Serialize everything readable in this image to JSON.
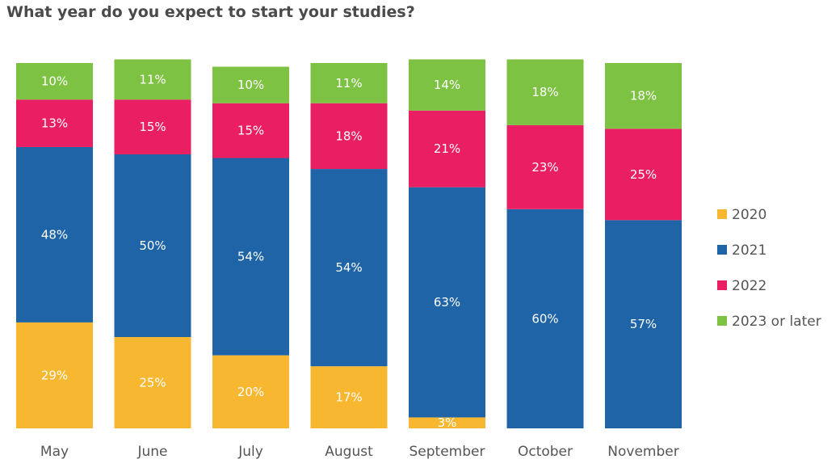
{
  "chart_data": {
    "type": "bar",
    "stacked": true,
    "normalized": true,
    "title": "What year do you expect to start your studies?",
    "xlabel": "",
    "ylabel": "",
    "ylim": [
      0,
      100
    ],
    "categories": [
      "May",
      "June",
      "July",
      "August",
      "September",
      "October",
      "November"
    ],
    "series": [
      {
        "name": "2020",
        "color": "#f7b731",
        "values": [
          29,
          25,
          20,
          17,
          3,
          0,
          0
        ],
        "labels": [
          "29%",
          "25%",
          "20%",
          "17%",
          "3%",
          "",
          ""
        ]
      },
      {
        "name": "2021",
        "color": "#1e64a6",
        "values": [
          48,
          50,
          54,
          54,
          63,
          60,
          57
        ],
        "labels": [
          "48%",
          "50%",
          "54%",
          "54%",
          "63%",
          "60%",
          "57%"
        ]
      },
      {
        "name": "2022",
        "color": "#e91e63",
        "values": [
          13,
          15,
          15,
          18,
          21,
          23,
          25
        ],
        "labels": [
          "13%",
          "15%",
          "15%",
          "18%",
          "21%",
          "23%",
          "25%"
        ]
      },
      {
        "name": "2023 or later",
        "color": "#7dc242",
        "values": [
          10,
          11,
          10,
          11,
          14,
          18,
          18
        ],
        "labels": [
          "10%",
          "11%",
          "10%",
          "11%",
          "14%",
          "18%",
          "18%"
        ]
      }
    ],
    "legend_position": "right"
  }
}
